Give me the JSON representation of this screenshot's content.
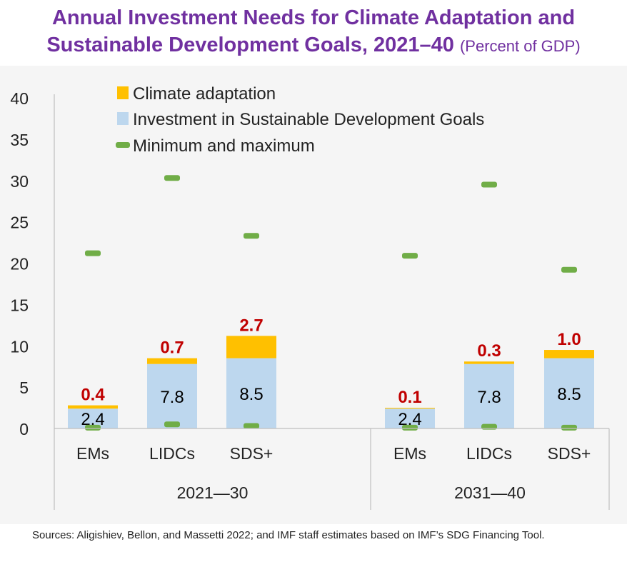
{
  "header": {
    "title_line1": "Annual Investment Needs for Climate Adaptation and",
    "title_line2": "Sustainable Development Goals, 2021–40",
    "title_unit": "(Percent of GDP)"
  },
  "chart_data": {
    "type": "bar",
    "stacked": true,
    "groups": [
      {
        "label": "2021—30",
        "categories": [
          "EMs",
          "LIDCs",
          "SDS+"
        ]
      },
      {
        "label": "2031—40",
        "categories": [
          "EMs",
          "LIDCs",
          "SDS+"
        ]
      }
    ],
    "categories": [
      "EMs",
      "LIDCs",
      "SDS+",
      "EMs",
      "LIDCs",
      "SDS+"
    ],
    "series": [
      {
        "name": "Investment in Sustainable Development Goals",
        "values": [
          2.4,
          7.8,
          8.5,
          2.4,
          7.8,
          8.5
        ],
        "color": "#bdd7ee"
      },
      {
        "name": "Climate adaptation",
        "values": [
          0.4,
          0.7,
          2.7,
          0.1,
          0.3,
          1.0
        ],
        "color": "#ffc000"
      }
    ],
    "min_max": {
      "name": "Minimum and maximum",
      "min": [
        0.1,
        0.5,
        0.3,
        0.1,
        0.2,
        0.1
      ],
      "max": [
        21.2,
        30.3,
        23.3,
        20.9,
        29.5,
        19.2
      ],
      "color": "#70ad47"
    },
    "legend_order": [
      "Climate adaptation",
      "Investment in Sustainable Development Goals",
      "Minimum and maximum"
    ],
    "legend_position": "top-left",
    "ylim": [
      0,
      40
    ],
    "yticks": [
      0,
      5,
      10,
      15,
      20,
      25,
      30,
      35,
      40
    ],
    "label_colors": {
      "sdg": "#000000",
      "adaptation": "#c00000"
    },
    "grid": false
  },
  "footer": {
    "sources": "Sources: Aligishiev, Bellon, and Massetti 2022; and IMF staff estimates based on IMF’s SDG Financing Tool."
  }
}
